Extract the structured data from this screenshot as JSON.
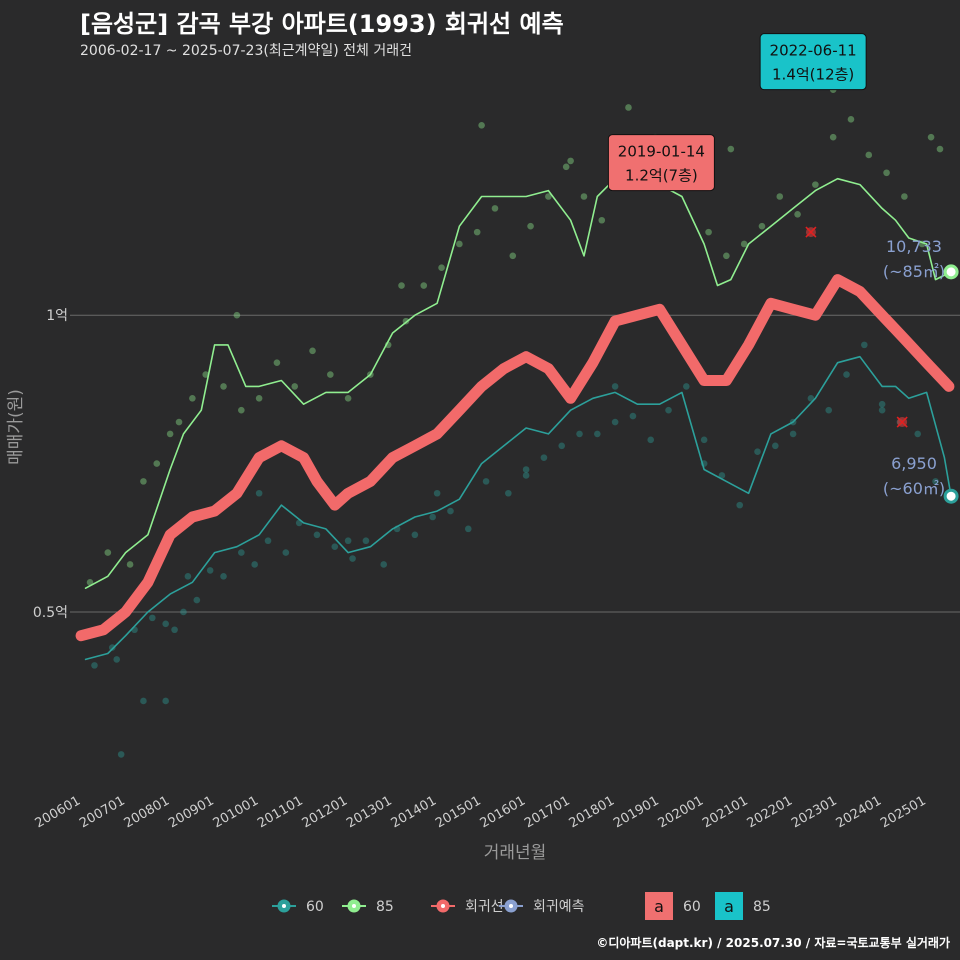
{
  "header": {
    "title": "[음성군] 감곡 부강 아파트(1993) 회귀선 예측",
    "subtitle": "2006-02-17 ~ 2025-07-23(최근계약일) 전체 거래건"
  },
  "credit": "©디아파트(dapt.kr) / 2025.07.30 / 자료=국토교통부 실거래가",
  "colors": {
    "background": "#2a2a2b",
    "s60": "#2ca09b",
    "s85": "#90ee90",
    "regression": "#f26a6a",
    "forecast": "#8aa0d0",
    "gridline": "#6a6a6a",
    "label_teal": "#19c3c9",
    "label_red": "#f07070"
  },
  "chart_data": {
    "type": "line",
    "xlabel": "거래년월",
    "ylabel": "매매가(원)",
    "y_unit": "억",
    "ylim": [
      0.2,
      1.43
    ],
    "xlim": [
      "2005-10",
      "2025-10"
    ],
    "y_ticks": [
      {
        "value": 0.5,
        "label": "0.5억"
      },
      {
        "value": 1.0,
        "label": "1억"
      }
    ],
    "x_ticks": [
      "200601",
      "200701",
      "200801",
      "200901",
      "201001",
      "201101",
      "201201",
      "201301",
      "201401",
      "201501",
      "201601",
      "201701",
      "201801",
      "201901",
      "202001",
      "202101",
      "202201",
      "202301",
      "202401",
      "202501"
    ],
    "series": [
      {
        "name": "60",
        "color": "#2ca09b",
        "x": [
          2006.1,
          2006.6,
          2007.0,
          2007.5,
          2008.0,
          2008.5,
          2009.0,
          2009.5,
          2010.0,
          2010.5,
          2011.0,
          2011.5,
          2012.0,
          2012.5,
          2013.0,
          2013.5,
          2014.0,
          2014.5,
          2015.0,
          2015.5,
          2016.0,
          2016.5,
          2017.0,
          2017.5,
          2018.0,
          2018.5,
          2019.0,
          2019.5,
          2020.0,
          2020.5,
          2021.0,
          2021.5,
          2022.0,
          2022.5,
          2023.0,
          2023.5,
          2024.0,
          2024.3,
          2024.6,
          2025.0,
          2025.4,
          2025.55
        ],
        "y": [
          0.42,
          0.43,
          0.46,
          0.5,
          0.53,
          0.55,
          0.6,
          0.61,
          0.63,
          0.68,
          0.65,
          0.64,
          0.6,
          0.61,
          0.64,
          0.66,
          0.67,
          0.69,
          0.75,
          0.78,
          0.81,
          0.8,
          0.84,
          0.86,
          0.87,
          0.85,
          0.85,
          0.87,
          0.74,
          0.72,
          0.7,
          0.8,
          0.82,
          0.86,
          0.92,
          0.93,
          0.88,
          0.88,
          0.86,
          0.87,
          0.76,
          0.695
        ]
      },
      {
        "name": "85",
        "color": "#90ee90",
        "x": [
          2006.1,
          2006.6,
          2007.0,
          2007.5,
          2008.0,
          2008.3,
          2008.7,
          2009.0,
          2009.3,
          2009.7,
          2010.0,
          2010.5,
          2011.0,
          2011.5,
          2012.0,
          2012.5,
          2013.0,
          2013.5,
          2014.0,
          2014.5,
          2015.0,
          2015.5,
          2016.0,
          2016.5,
          2017.0,
          2017.3,
          2017.6,
          2018.0,
          2018.5,
          2019.0,
          2019.5,
          2020.0,
          2020.3,
          2020.6,
          2021.0,
          2021.5,
          2022.0,
          2022.5,
          2023.0,
          2023.5,
          2024.0,
          2024.3,
          2024.6,
          2025.0,
          2025.2,
          2025.55
        ],
        "y": [
          0.54,
          0.56,
          0.6,
          0.63,
          0.74,
          0.8,
          0.84,
          0.95,
          0.95,
          0.88,
          0.88,
          0.89,
          0.85,
          0.87,
          0.87,
          0.9,
          0.97,
          1.0,
          1.02,
          1.15,
          1.2,
          1.2,
          1.2,
          1.21,
          1.16,
          1.1,
          1.2,
          1.23,
          1.26,
          1.22,
          1.2,
          1.12,
          1.05,
          1.06,
          1.12,
          1.15,
          1.18,
          1.21,
          1.23,
          1.22,
          1.18,
          1.16,
          1.13,
          1.12,
          1.06,
          1.073
        ]
      },
      {
        "name": "회귀선",
        "color": "#f26a6a",
        "x": [
          2006.0,
          2006.5,
          2007.0,
          2007.5,
          2008.0,
          2008.5,
          2009.0,
          2009.5,
          2010.0,
          2010.5,
          2011.0,
          2011.3,
          2011.7,
          2012.0,
          2012.5,
          2013.0,
          2013.5,
          2014.0,
          2014.5,
          2015.0,
          2015.5,
          2016.0,
          2016.5,
          2017.0,
          2017.5,
          2018.0,
          2018.5,
          2019.0,
          2019.5,
          2020.0,
          2020.5,
          2021.0,
          2021.5,
          2022.0,
          2022.5,
          2023.0,
          2023.5,
          2024.0,
          2024.5,
          2025.0,
          2025.5
        ],
        "y": [
          0.46,
          0.47,
          0.5,
          0.55,
          0.63,
          0.66,
          0.67,
          0.7,
          0.76,
          0.78,
          0.76,
          0.72,
          0.68,
          0.7,
          0.72,
          0.76,
          0.78,
          0.8,
          0.84,
          0.88,
          0.91,
          0.93,
          0.91,
          0.86,
          0.92,
          0.99,
          1.0,
          1.01,
          0.95,
          0.89,
          0.89,
          0.95,
          1.02,
          1.01,
          1.0,
          1.06,
          1.04,
          1.0,
          0.96,
          0.92,
          0.88
        ]
      },
      {
        "name": "회귀예측",
        "color": "#8aa0d0",
        "x": [],
        "y": []
      }
    ],
    "scatter_points": {
      "60": {
        "x": [
          2006.3,
          2006.7,
          2006.9,
          2007.2,
          2007.4,
          2007.6,
          2007.9,
          2008.1,
          2008.3,
          2008.6,
          2008.9,
          2009.2,
          2009.6,
          2009.9,
          2010.2,
          2010.6,
          2010.9,
          2011.3,
          2011.7,
          2012.1,
          2012.4,
          2012.8,
          2013.1,
          2013.5,
          2013.9,
          2014.3,
          2014.7,
          2015.1,
          2015.6,
          2016.0,
          2016.4,
          2016.8,
          2017.2,
          2017.6,
          2018.0,
          2018.4,
          2018.8,
          2019.2,
          2019.6,
          2020.0,
          2020.4,
          2020.8,
          2021.2,
          2021.6,
          2022.0,
          2022.4,
          2022.8,
          2023.2,
          2023.6,
          2024.0,
          2024.4,
          2024.8,
          2025.2,
          2006.8,
          2007.9,
          2008.4,
          2010.0,
          2012.0,
          2014.0,
          2016.0,
          2018.0,
          2020.0,
          2022.0,
          2024.0
        ],
        "y": [
          0.41,
          0.44,
          0.26,
          0.47,
          0.35,
          0.49,
          0.35,
          0.47,
          0.5,
          0.52,
          0.57,
          0.56,
          0.6,
          0.58,
          0.62,
          0.6,
          0.65,
          0.63,
          0.61,
          0.59,
          0.62,
          0.58,
          0.64,
          0.63,
          0.66,
          0.67,
          0.64,
          0.72,
          0.7,
          0.74,
          0.76,
          0.78,
          0.8,
          0.8,
          0.82,
          0.83,
          0.79,
          0.84,
          0.88,
          0.79,
          0.73,
          0.68,
          0.77,
          0.78,
          0.8,
          0.86,
          0.84,
          0.9,
          0.95,
          0.84,
          0.82,
          0.8,
          0.72,
          0.42,
          0.48,
          0.56,
          0.7,
          0.62,
          0.7,
          0.73,
          0.88,
          0.75,
          0.82,
          0.85
        ]
      },
      "85": {
        "x": [
          2006.2,
          2006.6,
          2007.1,
          2007.4,
          2007.7,
          2008.0,
          2008.2,
          2008.5,
          2008.8,
          2009.2,
          2009.6,
          2010.0,
          2010.4,
          2010.8,
          2011.2,
          2011.6,
          2012.0,
          2012.5,
          2012.9,
          2013.3,
          2013.7,
          2014.1,
          2014.5,
          2014.9,
          2015.3,
          2015.7,
          2016.1,
          2016.5,
          2016.9,
          2017.3,
          2017.7,
          2018.1,
          2018.5,
          2018.9,
          2019.3,
          2019.7,
          2020.1,
          2020.5,
          2020.9,
          2021.3,
          2021.7,
          2022.1,
          2022.5,
          2022.9,
          2023.3,
          2023.7,
          2024.1,
          2024.5,
          2024.9,
          2025.3,
          2009.5,
          2013.2,
          2015.0,
          2017.0,
          2018.3,
          2020.6,
          2022.9,
          2025.1
        ],
        "y": [
          0.55,
          0.6,
          0.58,
          0.72,
          0.75,
          0.8,
          0.82,
          0.86,
          0.9,
          0.88,
          0.84,
          0.86,
          0.92,
          0.88,
          0.94,
          0.9,
          0.86,
          0.9,
          0.95,
          0.99,
          1.05,
          1.08,
          1.12,
          1.14,
          1.18,
          1.1,
          1.15,
          1.2,
          1.25,
          1.2,
          1.16,
          1.24,
          1.28,
          1.3,
          1.26,
          1.22,
          1.14,
          1.1,
          1.12,
          1.15,
          1.2,
          1.17,
          1.22,
          1.3,
          1.33,
          1.27,
          1.24,
          1.2,
          1.12,
          1.28,
          1.0,
          1.05,
          1.32,
          1.26,
          1.35,
          1.28,
          1.38,
          1.3
        ]
      }
    },
    "highlight_points": {
      "60": {
        "x": 2025.55,
        "y": 0.695
      },
      "85": {
        "x": 2025.55,
        "y": 1.073
      }
    },
    "outlier_points": [
      {
        "x": 2022.4,
        "y": 1.14
      },
      {
        "x": 2024.45,
        "y": 0.82
      }
    ],
    "annotations": [
      {
        "date": "2019-01-14",
        "price": "1.2억(7층)",
        "x": 2019.04,
        "y": 1.21,
        "color": "#f07070"
      },
      {
        "date": "2022-06-11",
        "price": "1.4억(12층)",
        "x": 2022.45,
        "y": 1.38,
        "color": "#19c3c9"
      }
    ],
    "end_labels": [
      {
        "value": "10,733",
        "unit": "(~85㎡)",
        "color": "#8aa0d0"
      },
      {
        "value": "6,950",
        "unit": "(~60㎡)",
        "color": "#8aa0d0"
      }
    ],
    "legend": {
      "placement": "bottom",
      "items": [
        {
          "label": "60",
          "color": "#2ca09b"
        },
        {
          "label": "85",
          "color": "#90ee90"
        },
        {
          "label": "회귀선",
          "color": "#f26a6a"
        },
        {
          "label": "회귀예측",
          "color": "#8aa0d0"
        }
      ],
      "label_items": [
        {
          "glyph": "a",
          "label": "60",
          "color": "#f07070"
        },
        {
          "glyph": "a",
          "label": "85",
          "color": "#19c3c9"
        }
      ]
    }
  }
}
